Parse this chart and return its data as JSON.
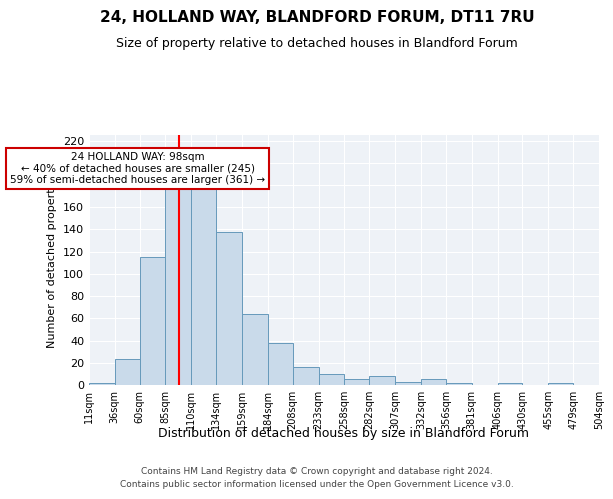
{
  "title": "24, HOLLAND WAY, BLANDFORD FORUM, DT11 7RU",
  "subtitle": "Size of property relative to detached houses in Blandford Forum",
  "xlabel": "Distribution of detached houses by size in Blandford Forum",
  "ylabel": "Number of detached properties",
  "footnote1": "Contains HM Land Registry data © Crown copyright and database right 2024.",
  "footnote2": "Contains public sector information licensed under the Open Government Licence v3.0.",
  "bin_edges": [
    11,
    36,
    60,
    85,
    110,
    134,
    159,
    184,
    208,
    233,
    258,
    282,
    307,
    332,
    356,
    381,
    406,
    430,
    455,
    479,
    504
  ],
  "bar_heights": [
    2,
    23,
    115,
    183,
    183,
    138,
    64,
    38,
    16,
    10,
    5,
    8,
    3,
    5,
    2,
    0,
    2,
    0,
    2,
    0
  ],
  "bar_color": "#c9daea",
  "bar_edge_color": "#6699bb",
  "red_line_x": 98,
  "ylim": [
    0,
    225
  ],
  "yticks": [
    0,
    20,
    40,
    60,
    80,
    100,
    120,
    140,
    160,
    180,
    200,
    220
  ],
  "annotation_title": "24 HOLLAND WAY: 98sqm",
  "annotation_line1": "← 40% of detached houses are smaller (245)",
  "annotation_line2": "59% of semi-detached houses are larger (361) →",
  "background_color": "#eef2f7"
}
